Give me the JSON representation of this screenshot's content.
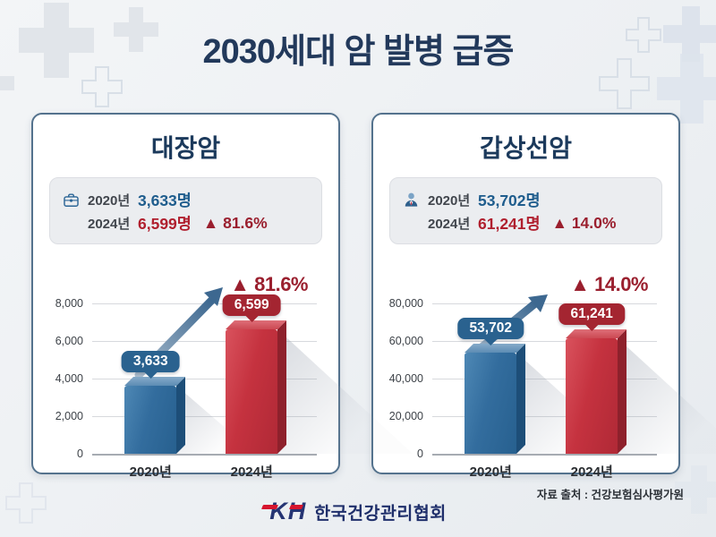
{
  "title": "2030세대 암 발병 급증",
  "panels": [
    {
      "title": "대장암",
      "icon": "medical-bag-icon",
      "stats": [
        {
          "year": "2020년",
          "value": "3,633명"
        },
        {
          "year": "2024년",
          "value": "6,599명",
          "delta": "▲ 81.6%"
        }
      ]
    },
    {
      "title": "갑상선암",
      "icon": "doctor-icon",
      "stats": [
        {
          "year": "2020년",
          "value": "53,702명"
        },
        {
          "year": "2024년",
          "value": "61,241명",
          "delta": "▲ 14.0%"
        }
      ]
    }
  ],
  "chart_data": [
    {
      "type": "bar",
      "title": "대장암",
      "categories": [
        "2020년",
        "2024년"
      ],
      "values": [
        3633,
        6599
      ],
      "value_labels": [
        "3,633",
        "6,599"
      ],
      "delta_label": "▲ 81.6%",
      "ylim": [
        0,
        8000
      ],
      "ytick_labels": [
        "8,000",
        "6,000",
        "4,000",
        "2,000",
        "0"
      ],
      "bar_colors": [
        "#2d6a9e",
        "#c5313e"
      ],
      "grid": true,
      "legend": "none"
    },
    {
      "type": "bar",
      "title": "갑상선암",
      "categories": [
        "2020년",
        "2024년"
      ],
      "values": [
        53702,
        61241
      ],
      "value_labels": [
        "53,702",
        "61,241"
      ],
      "delta_label": "▲ 14.0%",
      "ylim": [
        0,
        80000
      ],
      "ytick_labels": [
        "80,000",
        "60,000",
        "40,000",
        "20,000",
        "0"
      ],
      "bar_colors": [
        "#2d6a9e",
        "#c5313e"
      ],
      "grid": true,
      "legend": "none"
    }
  ],
  "footer": {
    "source": "자료 출처 : 건강보험심사평가원",
    "logo_text": "KH",
    "org_name": "한국건강관리협회"
  },
  "colors": {
    "title_navy": "#22395b",
    "blue_value": "#1f5d8d",
    "red_value": "#b01f2e",
    "delta_red": "#9a1f2e",
    "bar_blue": "#2d6a9e",
    "bar_red": "#c5313e",
    "panel_border": "#54728d",
    "background": "#eef1f4"
  }
}
